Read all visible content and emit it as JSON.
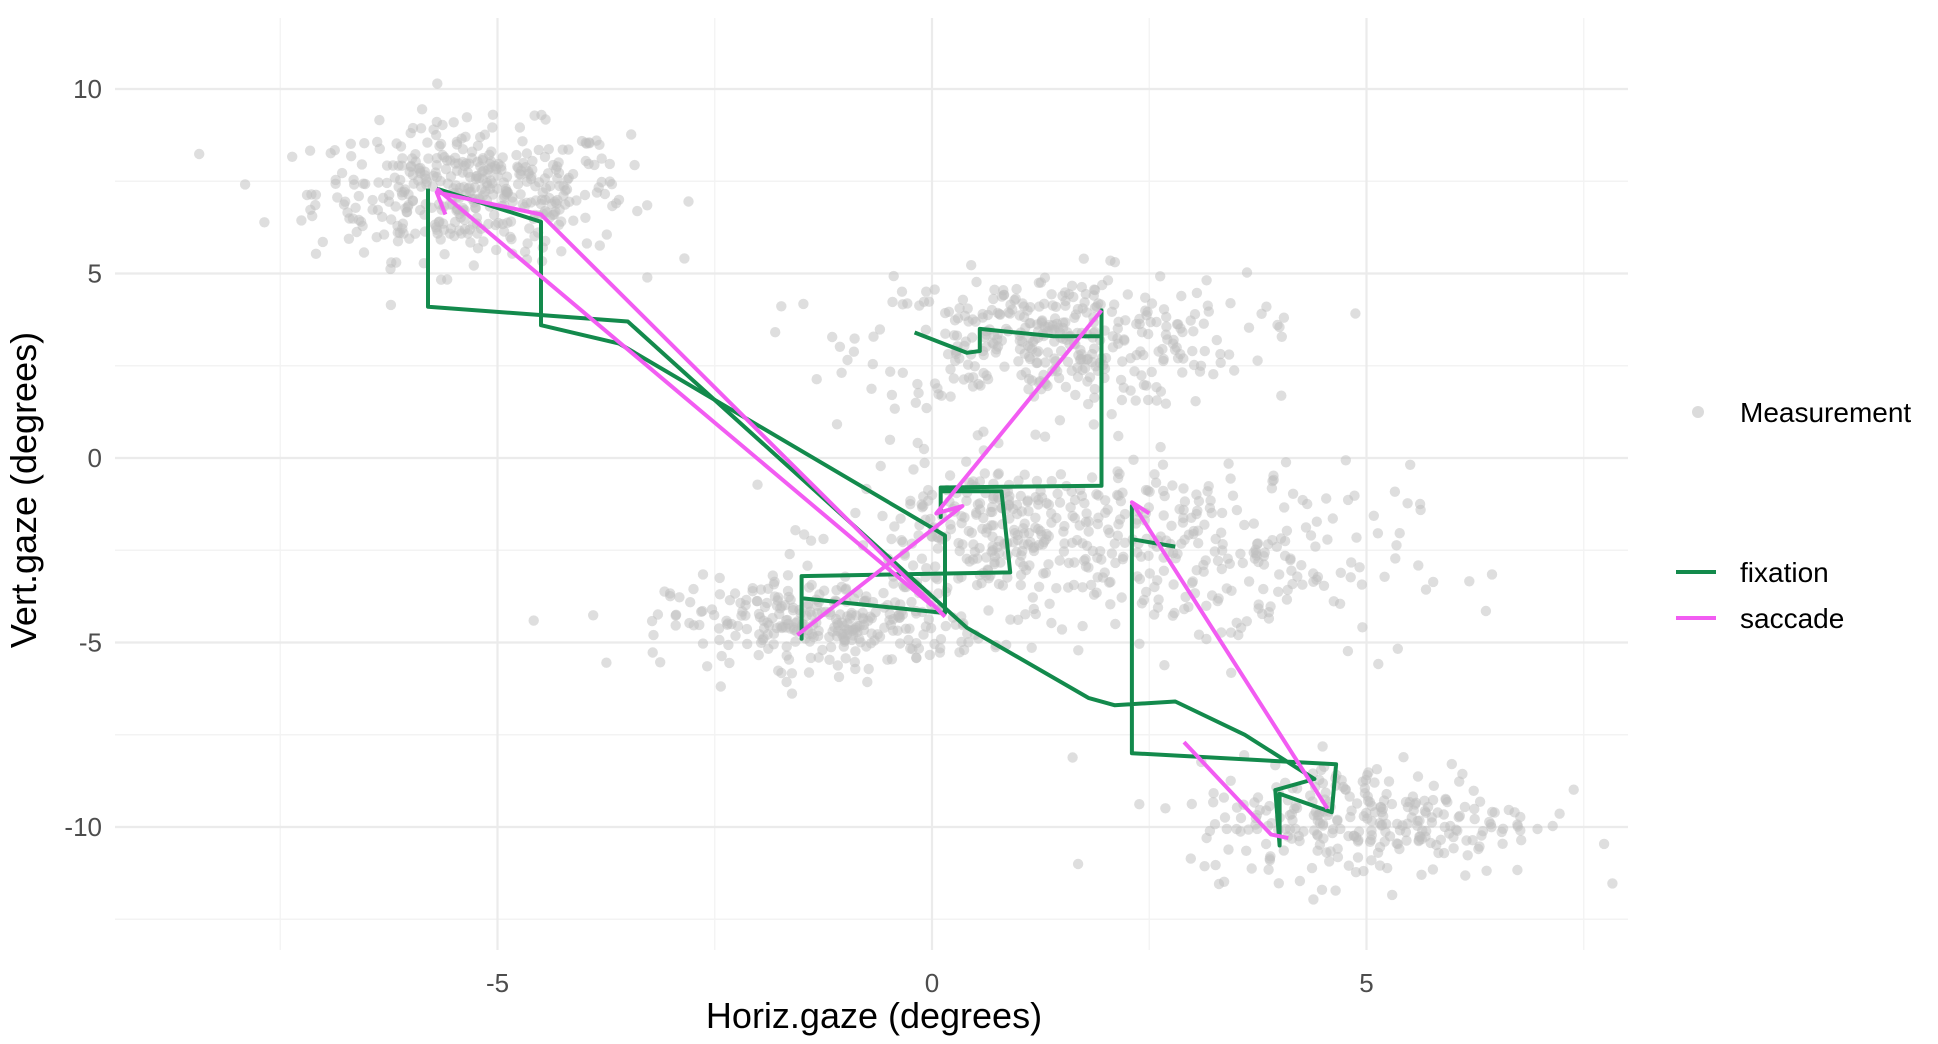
{
  "chart_data": {
    "type": "scatter",
    "xlabel": "Horiz.gaze (degrees)",
    "ylabel": "Vert.gaze (degrees)",
    "xlim": [
      -9.5,
      8
    ],
    "ylim": [
      -12.5,
      12
    ],
    "x_ticks": [
      -5,
      0,
      5
    ],
    "y_ticks": [
      -10,
      -5,
      0,
      5,
      10
    ],
    "x_tick_labels": [
      "-5",
      "0",
      "5"
    ],
    "y_tick_labels": [
      "-10",
      "-5",
      "0",
      "5",
      "10"
    ],
    "grid": true,
    "legend_position": "right",
    "measurement": {
      "name": "Measurement",
      "color": "#bdbdbd",
      "clusters": [
        {
          "center": [
            -5.3,
            7.2
          ],
          "spread": [
            0.9,
            0.9
          ],
          "count": 420
        },
        {
          "center": [
            1.4,
            3.2
          ],
          "spread": [
            1.1,
            0.9
          ],
          "count": 380
        },
        {
          "center": [
            -1.2,
            -4.5
          ],
          "spread": [
            0.9,
            0.6
          ],
          "count": 300
        },
        {
          "center": [
            1.0,
            -2.0
          ],
          "spread": [
            1.0,
            1.0
          ],
          "count": 330
        },
        {
          "center": [
            3.3,
            -2.8
          ],
          "spread": [
            1.1,
            1.3
          ],
          "count": 200
        },
        {
          "center": [
            5.0,
            -9.8
          ],
          "spread": [
            1.0,
            0.8
          ],
          "count": 280
        }
      ]
    },
    "series": [
      {
        "name": "fixation",
        "color": "#138a4c",
        "points": [
          [
            -5.7,
            7.3
          ],
          [
            -4.5,
            6.4
          ],
          [
            -4.5,
            3.6
          ],
          [
            -3.6,
            3.1
          ],
          [
            0.15,
            -2.1
          ],
          [
            0.15,
            -4.2
          ],
          [
            -1.5,
            -3.8
          ],
          [
            -1.5,
            -4.9
          ],
          [
            -1.5,
            -3.2
          ],
          [
            0.9,
            -3.1
          ],
          [
            0.8,
            -0.9
          ],
          [
            0.1,
            -0.9
          ],
          [
            0.1,
            -1.6
          ],
          [
            0.1,
            -0.8
          ],
          [
            1.95,
            -0.75
          ],
          [
            1.95,
            4.0
          ],
          [
            1.95,
            3.3
          ],
          [
            1.4,
            3.3
          ],
          [
            0.55,
            3.5
          ],
          [
            0.55,
            2.9
          ],
          [
            0.4,
            2.85
          ],
          [
            -0.2,
            3.4
          ]
        ]
      },
      {
        "name": "fixation",
        "color": "#138a4c",
        "points": [
          [
            -5.8,
            7.3
          ],
          [
            -5.8,
            4.1
          ],
          [
            -3.5,
            3.7
          ],
          [
            0.4,
            -4.6
          ],
          [
            1.8,
            -6.5
          ],
          [
            2.1,
            -6.7
          ],
          [
            2.8,
            -6.6
          ],
          [
            3.6,
            -7.5
          ],
          [
            4.4,
            -8.7
          ],
          [
            3.95,
            -9.0
          ],
          [
            4.0,
            -10.5
          ],
          [
            4.0,
            -9.1
          ],
          [
            4.6,
            -9.6
          ],
          [
            4.65,
            -8.3
          ],
          [
            2.3,
            -8.0
          ],
          [
            2.3,
            -1.3
          ],
          [
            2.3,
            -2.2
          ],
          [
            2.8,
            -2.4
          ]
        ]
      },
      {
        "name": "saccade",
        "color": "#f25cf2",
        "points": [
          [
            -5.6,
            6.6
          ],
          [
            -5.7,
            7.2
          ],
          [
            -4.5,
            6.6
          ],
          [
            0.15,
            -4.3
          ]
        ]
      },
      {
        "name": "saccade",
        "color": "#f25cf2",
        "points": [
          [
            -5.7,
            7.3
          ],
          [
            0.0,
            -4.0
          ]
        ]
      },
      {
        "name": "saccade",
        "color": "#f25cf2",
        "points": [
          [
            -1.55,
            -4.8
          ],
          [
            0.35,
            -1.3
          ],
          [
            0.05,
            -1.5
          ],
          [
            1.95,
            4.0
          ]
        ]
      },
      {
        "name": "saccade",
        "color": "#f25cf2",
        "points": [
          [
            2.5,
            -1.5
          ],
          [
            2.3,
            -1.2
          ],
          [
            4.55,
            -9.5
          ]
        ]
      },
      {
        "name": "saccade",
        "color": "#f25cf2",
        "points": [
          [
            2.9,
            -7.7
          ],
          [
            3.9,
            -10.2
          ],
          [
            4.1,
            -10.3
          ]
        ]
      }
    ],
    "legend": {
      "measurement_label": "Measurement",
      "fixation_label": "fixation",
      "saccade_label": "saccade"
    }
  },
  "colors": {
    "grid_major": "#ebebeb",
    "grid_minor": "#f3f3f3",
    "fixation": "#138a4c",
    "saccade": "#f25cf2",
    "measurement": "#bdbdbd"
  }
}
